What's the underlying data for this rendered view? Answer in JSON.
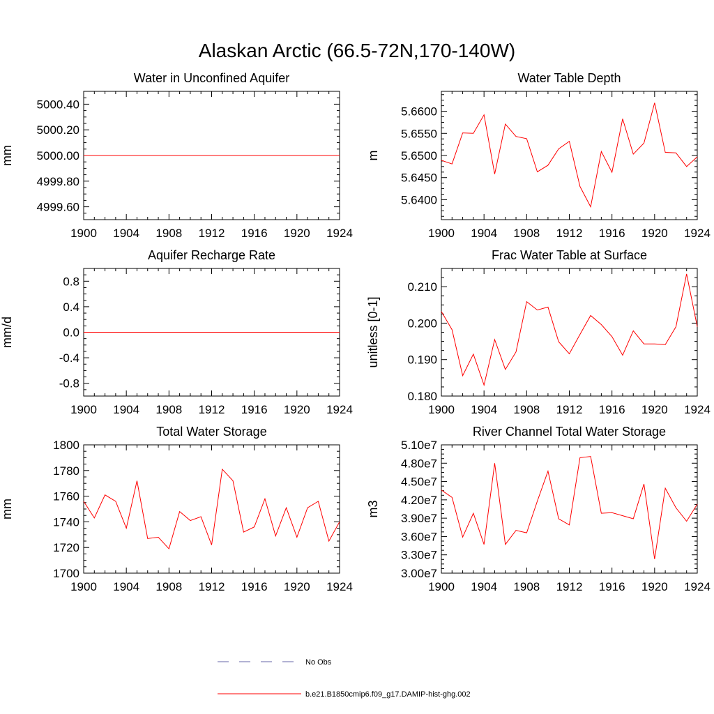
{
  "figure": {
    "title": "Alaskan Arctic (66.5-72N,170-140W)"
  },
  "legend": {
    "placement": "bottom-center",
    "entries": [
      {
        "label": "No Obs",
        "color": "#6666aa",
        "style": "dashed"
      },
      {
        "label": "b.e21.B1850cmip6.f09_g17.DAMIP-hist-ghg.002",
        "color": "#ff0000",
        "style": "solid"
      }
    ]
  },
  "chart_data": [
    {
      "type": "line",
      "title": "Water in Unconfined Aquifer",
      "ylabel": "mm",
      "xlabel": "",
      "xlim": [
        1900,
        1924
      ],
      "ylim": [
        4999.5,
        5000.5
      ],
      "xticks": [
        "1900",
        "1904",
        "1908",
        "1912",
        "1916",
        "1920",
        "1924"
      ],
      "yticks": [
        {
          "v": 4999.6,
          "label": "4999.60"
        },
        {
          "v": 4999.8,
          "label": "4999.80"
        },
        {
          "v": 5000.0,
          "label": "5000.00"
        },
        {
          "v": 5000.2,
          "label": "5000.20"
        },
        {
          "v": 5000.4,
          "label": "5000.40"
        }
      ],
      "x": [
        1900,
        1901,
        1902,
        1903,
        1904,
        1905,
        1906,
        1907,
        1908,
        1909,
        1910,
        1911,
        1912,
        1913,
        1914,
        1915,
        1916,
        1917,
        1918,
        1919,
        1920,
        1921,
        1922,
        1923,
        1924
      ],
      "series": [
        {
          "color": "#ff0000",
          "values": [
            5000,
            5000,
            5000,
            5000,
            5000,
            5000,
            5000,
            5000,
            5000,
            5000,
            5000,
            5000,
            5000,
            5000,
            5000,
            5000,
            5000,
            5000,
            5000,
            5000,
            5000,
            5000,
            5000,
            5000,
            5000
          ]
        }
      ]
    },
    {
      "type": "line",
      "title": "Water Table Depth",
      "ylabel": "m",
      "xlabel": "",
      "xlim": [
        1900,
        1924
      ],
      "ylim": [
        5.6355,
        5.6645
      ],
      "xticks": [
        "1900",
        "1904",
        "1908",
        "1912",
        "1916",
        "1920",
        "1924"
      ],
      "yticks": [
        {
          "v": 5.64,
          "label": "5.6400"
        },
        {
          "v": 5.645,
          "label": "5.6450"
        },
        {
          "v": 5.65,
          "label": "5.6500"
        },
        {
          "v": 5.655,
          "label": "5.6550"
        },
        {
          "v": 5.66,
          "label": "5.6600"
        }
      ],
      "x": [
        1900,
        1901,
        1902,
        1903,
        1904,
        1905,
        1906,
        1907,
        1908,
        1909,
        1910,
        1911,
        1912,
        1913,
        1914,
        1915,
        1916,
        1917,
        1918,
        1919,
        1920,
        1921,
        1922,
        1923,
        1924
      ],
      "series": [
        {
          "color": "#ff0000",
          "values": [
            5.6489,
            5.6481,
            5.6551,
            5.655,
            5.6592,
            5.6458,
            5.6571,
            5.6543,
            5.6538,
            5.6463,
            5.6478,
            5.6515,
            5.6532,
            5.643,
            5.6384,
            5.6509,
            5.6462,
            5.6583,
            5.6503,
            5.6528,
            5.6619,
            5.6507,
            5.6506,
            5.6475,
            5.6497
          ]
        }
      ]
    },
    {
      "type": "line",
      "title": "Aquifer Recharge Rate",
      "ylabel": "mm/d",
      "xlabel": "",
      "xlim": [
        1900,
        1924
      ],
      "ylim": [
        -1.0,
        1.0
      ],
      "xticks": [
        "1900",
        "1904",
        "1908",
        "1912",
        "1916",
        "1920",
        "1924"
      ],
      "yticks": [
        {
          "v": -0.8,
          "label": "-0.8"
        },
        {
          "v": -0.4,
          "label": "-0.4"
        },
        {
          "v": 0.0,
          "label": "0.0"
        },
        {
          "v": 0.4,
          "label": "0.4"
        },
        {
          "v": 0.8,
          "label": "0.8"
        }
      ],
      "x": [
        1900,
        1901,
        1902,
        1903,
        1904,
        1905,
        1906,
        1907,
        1908,
        1909,
        1910,
        1911,
        1912,
        1913,
        1914,
        1915,
        1916,
        1917,
        1918,
        1919,
        1920,
        1921,
        1922,
        1923,
        1924
      ],
      "series": [
        {
          "color": "#ff0000",
          "values": [
            0,
            0,
            0,
            0,
            0,
            0,
            0,
            0,
            0,
            0,
            0,
            0,
            0,
            0,
            0,
            0,
            0,
            0,
            0,
            0,
            0,
            0,
            0,
            0,
            0
          ]
        }
      ]
    },
    {
      "type": "line",
      "title": "Frac Water Table at Surface",
      "ylabel": "unitless [0-1]",
      "xlabel": "",
      "xlim": [
        1900,
        1924
      ],
      "ylim": [
        0.18,
        0.215
      ],
      "xticks": [
        "1900",
        "1904",
        "1908",
        "1912",
        "1916",
        "1920",
        "1924"
      ],
      "yticks": [
        {
          "v": 0.18,
          "label": "0.180"
        },
        {
          "v": 0.19,
          "label": "0.190"
        },
        {
          "v": 0.2,
          "label": "0.200"
        },
        {
          "v": 0.21,
          "label": "0.210"
        }
      ],
      "x": [
        1900,
        1901,
        1902,
        1903,
        1904,
        1905,
        1906,
        1907,
        1908,
        1909,
        1910,
        1911,
        1912,
        1913,
        1914,
        1915,
        1916,
        1917,
        1918,
        1919,
        1920,
        1921,
        1922,
        1923,
        1924
      ],
      "series": [
        {
          "color": "#ff0000",
          "values": [
            0.2032,
            0.1982,
            0.1856,
            0.1915,
            0.183,
            0.1955,
            0.1873,
            0.1921,
            0.2059,
            0.2036,
            0.2044,
            0.1949,
            0.1916,
            0.1969,
            0.2021,
            0.1996,
            0.1963,
            0.1912,
            0.1979,
            0.1943,
            0.1943,
            0.1941,
            0.199,
            0.2135,
            0.199
          ]
        }
      ]
    },
    {
      "type": "line",
      "title": "Total Water Storage",
      "ylabel": "mm",
      "xlabel": "",
      "xlim": [
        1900,
        1924
      ],
      "ylim": [
        1700,
        1800
      ],
      "xticks": [
        "1900",
        "1904",
        "1908",
        "1912",
        "1916",
        "1920",
        "1924"
      ],
      "yticks": [
        {
          "v": 1700,
          "label": "1700"
        },
        {
          "v": 1720,
          "label": "1720"
        },
        {
          "v": 1740,
          "label": "1740"
        },
        {
          "v": 1760,
          "label": "1760"
        },
        {
          "v": 1780,
          "label": "1780"
        },
        {
          "v": 1800,
          "label": "1800"
        }
      ],
      "x": [
        1900,
        1901,
        1902,
        1903,
        1904,
        1905,
        1906,
        1907,
        1908,
        1909,
        1910,
        1911,
        1912,
        1913,
        1914,
        1915,
        1916,
        1917,
        1918,
        1919,
        1920,
        1921,
        1922,
        1923,
        1924
      ],
      "series": [
        {
          "color": "#ff0000",
          "values": [
            1756,
            1743,
            1761,
            1756,
            1735,
            1772,
            1727,
            1728,
            1719,
            1748,
            1741,
            1744,
            1722,
            1781,
            1772,
            1732,
            1736,
            1758,
            1729,
            1751,
            1728,
            1751,
            1756,
            1725,
            1740
          ]
        }
      ]
    },
    {
      "type": "line",
      "title": "River Channel Total Water Storage",
      "ylabel": "m3",
      "xlabel": "",
      "xlim": [
        1900,
        1924
      ],
      "ylim": [
        30000000,
        51000000
      ],
      "xticks": [
        "1900",
        "1904",
        "1908",
        "1912",
        "1916",
        "1920",
        "1924"
      ],
      "yticks": [
        {
          "v": 30000000,
          "label": "3.00e7"
        },
        {
          "v": 33000000,
          "label": "3.30e7"
        },
        {
          "v": 36000000,
          "label": "3.60e7"
        },
        {
          "v": 39000000,
          "label": "3.90e7"
        },
        {
          "v": 42000000,
          "label": "4.20e7"
        },
        {
          "v": 45000000,
          "label": "4.50e7"
        },
        {
          "v": 48000000,
          "label": "4.80e7"
        },
        {
          "v": 51000000,
          "label": "5.10e7"
        }
      ],
      "x": [
        1900,
        1901,
        1902,
        1903,
        1904,
        1905,
        1906,
        1907,
        1908,
        1909,
        1910,
        1911,
        1912,
        1913,
        1914,
        1915,
        1916,
        1917,
        1918,
        1919,
        1920,
        1921,
        1922,
        1923,
        1924
      ],
      "series": [
        {
          "color": "#ff0000",
          "values": [
            43600000,
            42400000,
            35900000,
            39800000,
            34700000,
            48000000,
            34700000,
            37000000,
            36600000,
            41800000,
            46700000,
            38900000,
            37900000,
            48900000,
            49100000,
            39800000,
            39900000,
            39400000,
            38900000,
            44600000,
            32300000,
            43900000,
            40700000,
            38500000,
            41300000
          ]
        }
      ]
    }
  ]
}
